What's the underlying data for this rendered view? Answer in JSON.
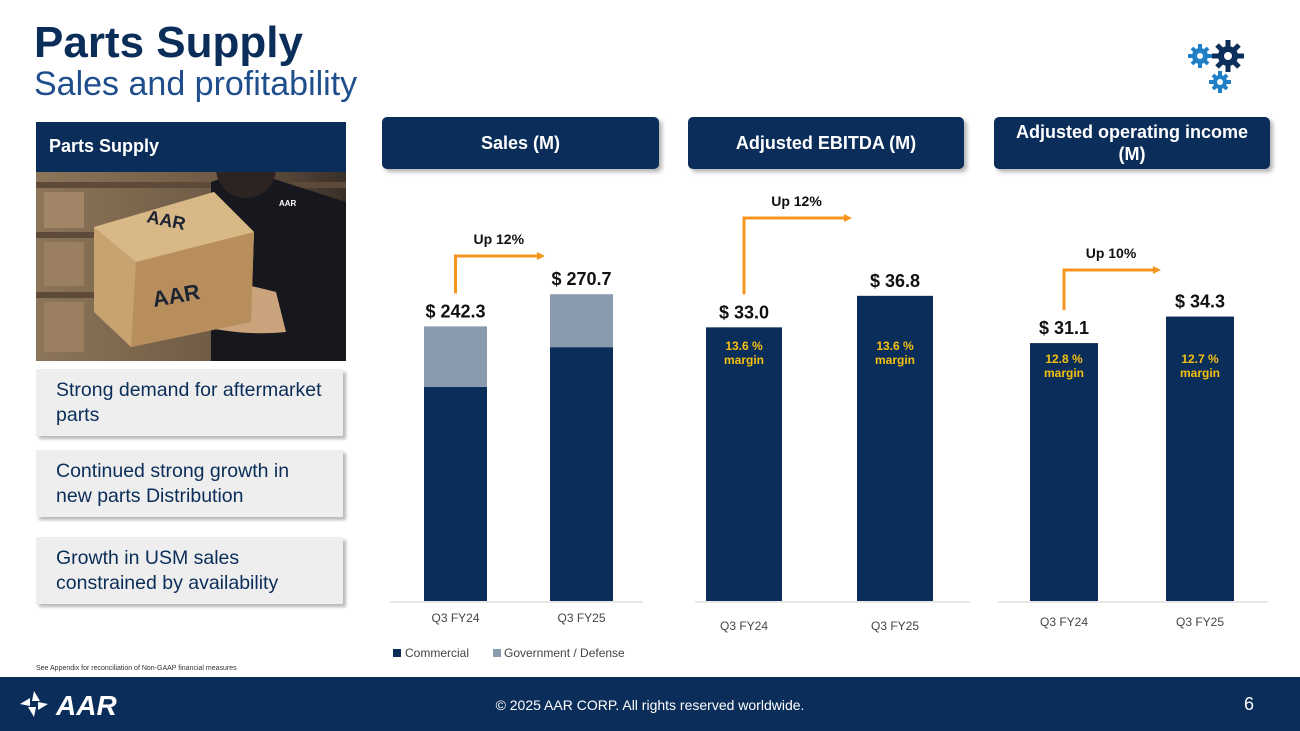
{
  "header": {
    "title": "Parts Supply",
    "subtitle": "Sales and profitability",
    "icon": "gears-icon"
  },
  "left_panel": {
    "header": "Parts Supply",
    "bullets": [
      "Strong demand for aftermarket parts",
      "Continued strong growth in new parts Distribution",
      "Growth in USM sales constrained by availability"
    ]
  },
  "panels": {
    "sales": "Sales (M)",
    "ebitda": "Adjusted EBITDA (M)",
    "op_income": "Adjusted operating income (M)"
  },
  "colors": {
    "navy": "#0b2d59",
    "gray": "#8a9bb0",
    "orange": "#f7941d",
    "margin_text": "#f5c010"
  },
  "chart_data": [
    {
      "type": "bar",
      "stacked": true,
      "title": "Sales (M)",
      "categories": [
        "Q3 FY24",
        "Q3 FY25"
      ],
      "series": [
        {
          "name": "Commercial",
          "values": [
            189,
            224
          ]
        },
        {
          "name": "Government / Defense",
          "values": [
            53.3,
            46.7
          ]
        }
      ],
      "totals": [
        "$ 242.3",
        "$ 270.7"
      ],
      "annotation": "Up 12%",
      "legend": "bottom",
      "ylim": [
        0,
        300
      ]
    },
    {
      "type": "bar",
      "title": "Adjusted EBITDA (M)",
      "categories": [
        "Q3 FY24",
        "Q3 FY25"
      ],
      "values": [
        33.0,
        36.8
      ],
      "value_labels": [
        "$ 33.0",
        "$ 36.8"
      ],
      "margin_values": [
        "13.6 %",
        "13.6 %"
      ],
      "margin_word": "margin",
      "annotation": "Up 12%",
      "ylim": [
        0,
        41
      ]
    },
    {
      "type": "bar",
      "title": "Adjusted operating income (M)",
      "categories": [
        "Q3 FY24",
        "Q3 FY25"
      ],
      "values": [
        31.1,
        34.3
      ],
      "value_labels": [
        "$ 31.1",
        "$ 34.3"
      ],
      "margin_values": [
        "12.8 %",
        "12.7 %"
      ],
      "margin_word": "margin",
      "annotation": "Up 10%",
      "ylim": [
        0,
        41
      ]
    }
  ],
  "footnote": "See Appendix for reconciliation of Non-GAAP financial measures",
  "footer": {
    "logo_text": "AAR",
    "copyright": "© 2025 AAR CORP. All rights reserved worldwide.",
    "page_number": "6"
  }
}
